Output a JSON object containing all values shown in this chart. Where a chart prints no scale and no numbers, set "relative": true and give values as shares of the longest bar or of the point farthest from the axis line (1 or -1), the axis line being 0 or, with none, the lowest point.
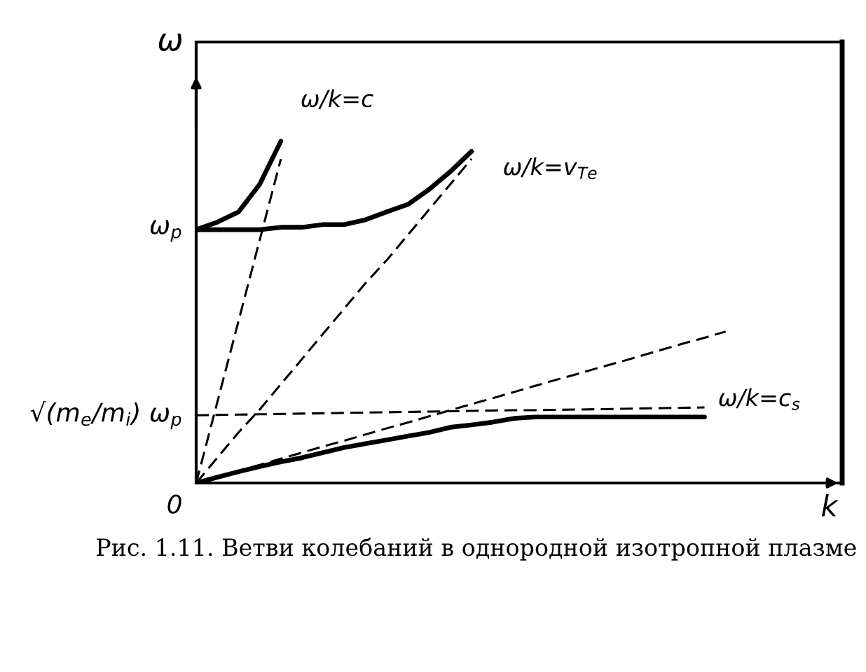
{
  "chart_data": {
    "type": "line",
    "relative": true,
    "xlabel": "k",
    "ylabel": "ω",
    "marker": "none",
    "categories": [
      null,
      null,
      null,
      null,
      null,
      null,
      null,
      null,
      null,
      null,
      null,
      null,
      null,
      null,
      null,
      null,
      null,
      null,
      null,
      null,
      null,
      null,
      null,
      null,
      null,
      null
    ],
    "series": [
      {
        "color": "#000000",
        "line_style": "solid",
        "values": [
          0.741,
          0.763,
          0.793,
          0.874,
          1.0,
          null,
          null,
          null,
          null,
          null,
          null,
          null,
          null,
          null,
          null,
          null,
          null,
          null,
          null,
          null,
          null,
          null,
          null,
          null,
          null,
          null
        ]
      },
      {
        "color": "#000000",
        "line_style": "solid",
        "values": [
          0.741,
          0.741,
          0.741,
          0.741,
          0.748,
          0.748,
          0.756,
          0.756,
          0.77,
          0.793,
          0.815,
          0.859,
          0.911,
          0.97,
          null,
          null,
          null,
          null,
          null,
          null,
          null,
          null,
          null,
          null,
          null,
          null
        ]
      },
      {
        "name": "ω/k=c",
        "color": "#000000",
        "line_style": "dashed",
        "values": [
          0,
          0.237,
          0.474,
          0.711,
          0.948,
          null,
          null,
          null,
          null,
          null,
          null,
          null,
          null,
          null,
          null,
          null,
          null,
          null,
          null,
          null,
          null,
          null,
          null,
          null,
          null,
          null
        ]
      },
      {
        "name": "ω/k=v$_{Te}$",
        "color": "#000000",
        "line_style": "dashed",
        "values": [
          0,
          0.074,
          0.148,
          0.215,
          0.289,
          0.363,
          0.437,
          0.511,
          0.585,
          0.652,
          0.726,
          0.8,
          0.874,
          0.948,
          null,
          null,
          null,
          null,
          null,
          null,
          null,
          null,
          null,
          null,
          null,
          null
        ]
      },
      {
        "color": "#000000",
        "line_style": "solid",
        "values": [
          0,
          0.017,
          0.033,
          0.048,
          0.062,
          0.074,
          0.089,
          0.104,
          0.115,
          0.126,
          0.137,
          0.148,
          0.163,
          0.17,
          0.178,
          0.189,
          0.193,
          0.193,
          0.193,
          0.193,
          0.193,
          0.193,
          0.193,
          0.193,
          0.193,
          null
        ]
      },
      {
        "name": "ω/k=c$_{s}$",
        "color": "#000000",
        "line_style": "dashed",
        "values": [
          0,
          0.018,
          0.036,
          0.053,
          0.071,
          0.089,
          0.107,
          0.124,
          0.142,
          0.16,
          0.177,
          0.195,
          0.213,
          0.231,
          0.248,
          0.266,
          0.284,
          0.302,
          0.319,
          0.337,
          0.354,
          0.372,
          0.39,
          0.408,
          0.425,
          0.443
        ]
      },
      {
        "color": "#000000",
        "line_style": "dashed",
        "values": [
          0.198,
          0.199,
          0.2,
          0.201,
          0.202,
          0.203,
          0.204,
          0.205,
          0.206,
          0.207,
          0.208,
          0.209,
          0.21,
          0.211,
          0.212,
          0.213,
          0.213,
          0.214,
          0.215,
          0.216,
          0.217,
          0.218,
          0.219,
          0.22,
          0.221,
          null
        ]
      }
    ],
    "annotations": [
      "ω$_{p}$",
      "√(m$_{e}$/m$_{i}$) ω$_{p}$",
      "0",
      "Рис. 1.11. Ветви колебаний в однородной изотропной плазме"
    ]
  }
}
